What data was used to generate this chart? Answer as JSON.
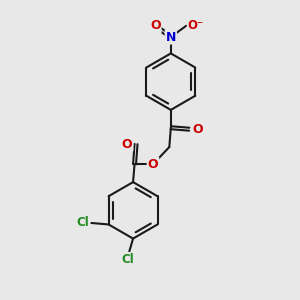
{
  "bg_color": "#e8e8e8",
  "bond_color": "#1a1a1a",
  "bond_width": 1.5,
  "atom_colors": {
    "O": "#cc0000",
    "N": "#0000cc",
    "Cl": "#228B22"
  },
  "figsize": [
    3.0,
    3.0
  ],
  "dpi": 100,
  "xlim": [
    0,
    10
  ],
  "ylim": [
    0,
    10
  ]
}
